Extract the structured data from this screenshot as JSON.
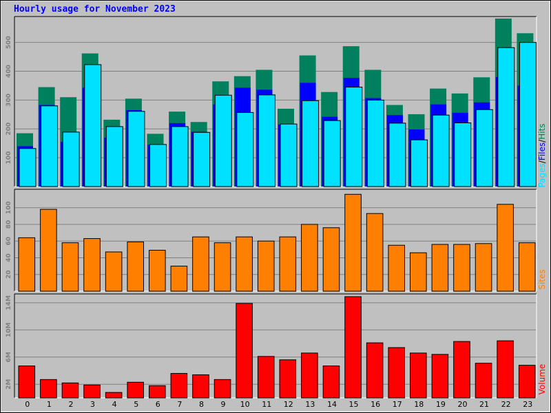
{
  "title": "Hourly usage for November 2023",
  "colors": {
    "background": "#c0c0c0",
    "hits": "#00805c",
    "files": "#0000ff",
    "pages": "#00e0ff",
    "sites": "#ff8000",
    "volume": "#ff0000",
    "grid": "#808080",
    "tick_label": "#808080"
  },
  "chart_data": [
    {
      "type": "bar",
      "panel": "hits-files-pages",
      "categories": [
        "0",
        "1",
        "2",
        "3",
        "4",
        "5",
        "6",
        "7",
        "8",
        "9",
        "10",
        "11",
        "12",
        "13",
        "14",
        "15",
        "16",
        "17",
        "18",
        "19",
        "20",
        "21",
        "22",
        "23"
      ],
      "series": [
        {
          "name": "Hits",
          "values": [
            185,
            345,
            310,
            462,
            232,
            305,
            183,
            260,
            224,
            365,
            383,
            405,
            270,
            455,
            328,
            487,
            405,
            283,
            251,
            340,
            323,
            379,
            583,
            532
          ]
        },
        {
          "name": "Files",
          "values": [
            140,
            283,
            155,
            343,
            170,
            265,
            145,
            220,
            190,
            285,
            343,
            336,
            215,
            360,
            242,
            377,
            307,
            248,
            198,
            285,
            256,
            292,
            380,
            350
          ]
        },
        {
          "name": "Pages",
          "values": [
            132,
            280,
            189,
            423,
            208,
            261,
            146,
            208,
            188,
            317,
            257,
            318,
            217,
            298,
            229,
            345,
            300,
            220,
            162,
            248,
            221,
            267,
            482,
            500
          ]
        }
      ],
      "y_ticks": [
        "100",
        "200",
        "300",
        "400",
        "500"
      ],
      "ylim": [
        0,
        590
      ],
      "legend_label": {
        "pages": "Pages",
        "sep1": "/",
        "files": "Files",
        "sep2": "/",
        "hits": "Hits"
      }
    },
    {
      "type": "bar",
      "panel": "sites",
      "categories": [
        "0",
        "1",
        "2",
        "3",
        "4",
        "5",
        "6",
        "7",
        "8",
        "9",
        "10",
        "11",
        "12",
        "13",
        "14",
        "15",
        "16",
        "17",
        "18",
        "19",
        "20",
        "21",
        "22",
        "23"
      ],
      "series": [
        {
          "name": "Sites",
          "values": [
            64,
            98,
            58,
            63,
            47,
            59,
            49,
            30,
            65,
            58,
            65,
            60,
            65,
            80,
            76,
            116,
            93,
            55,
            46,
            56,
            56,
            57,
            104,
            58
          ]
        }
      ],
      "y_ticks": [
        "20",
        "40",
        "60",
        "80",
        "100"
      ],
      "ylim": [
        0,
        122
      ],
      "legend_label": "Sites"
    },
    {
      "type": "bar",
      "panel": "volume",
      "categories": [
        "0",
        "1",
        "2",
        "3",
        "4",
        "5",
        "6",
        "7",
        "8",
        "9",
        "10",
        "11",
        "12",
        "13",
        "14",
        "15",
        "16",
        "17",
        "18",
        "19",
        "20",
        "21",
        "22",
        "23"
      ],
      "series": [
        {
          "name": "Volume",
          "values": [
            4.7,
            2.7,
            2.2,
            1.9,
            0.8,
            2.3,
            1.8,
            3.6,
            3.4,
            2.7,
            13.9,
            6.1,
            5.6,
            6.6,
            4.7,
            14.9,
            8.1,
            7.4,
            6.6,
            6.4,
            8.3,
            5.1,
            8.4,
            4.8
          ]
        }
      ],
      "y_ticks": [
        "2M",
        "6M",
        "10M",
        "14M"
      ],
      "ylim": [
        0,
        15.3
      ],
      "legend_label": "Volume"
    }
  ]
}
